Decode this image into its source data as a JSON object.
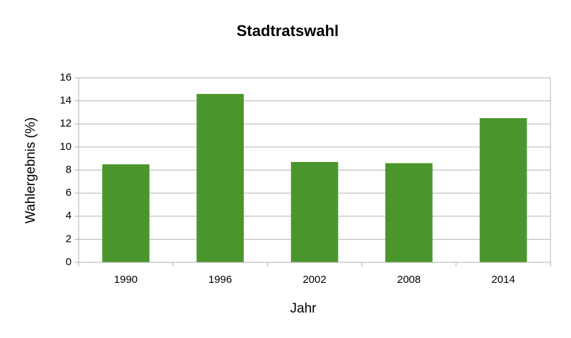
{
  "chart_data": {
    "type": "bar",
    "title": "Stadtratswahl",
    "x_label": "Jahr",
    "y_label": "Wahlergebnis (%)",
    "categories": [
      "1990",
      "1996",
      "2002",
      "2008",
      "2014"
    ],
    "values": [
      8.5,
      14.6,
      8.7,
      8.6,
      12.5
    ],
    "color": "#4a962c",
    "ylim": [
      0,
      16
    ],
    "yticks": [
      0,
      2,
      4,
      6,
      8,
      10,
      12,
      14,
      16
    ],
    "grid": true
  }
}
